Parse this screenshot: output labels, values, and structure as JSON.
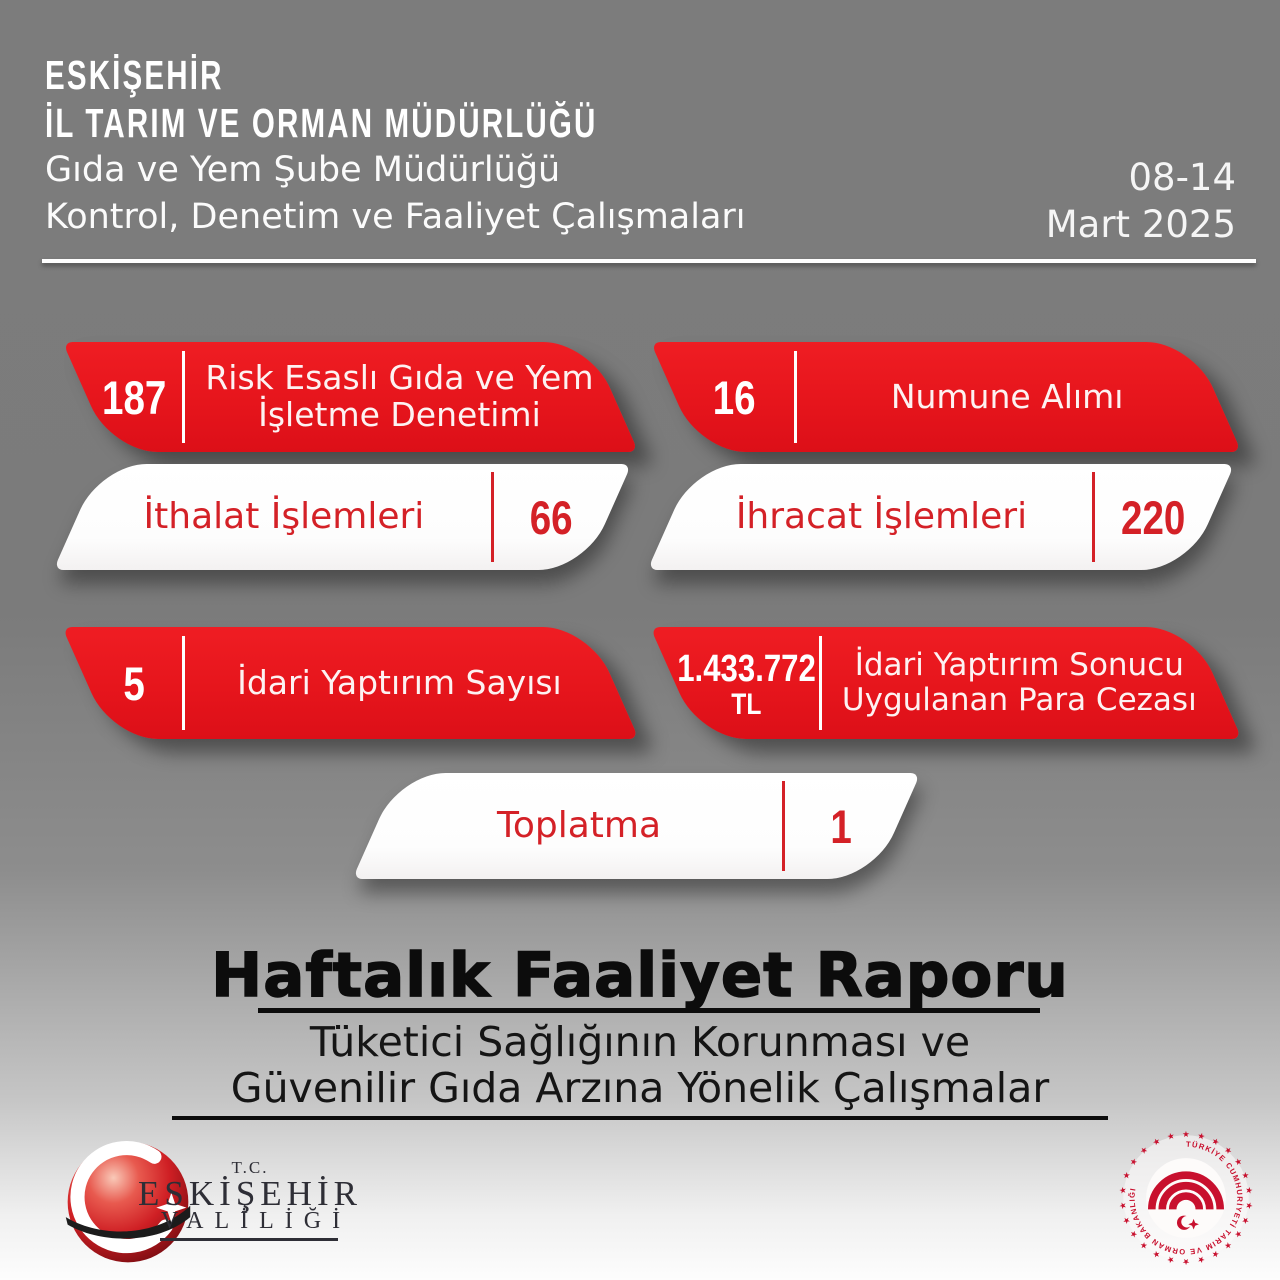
{
  "header": {
    "org_line1": "ESKİŞEHİR",
    "org_line2": "İL TARIM VE ORMAN MÜDÜRLÜĞÜ",
    "dept_line1": "Gıda ve Yem Şube Müdürlüğü",
    "dept_line2": "Kontrol, Denetim ve Faaliyet Çalışmaları",
    "date_line1": "08-14",
    "date_line2": "Mart 2025"
  },
  "stats": [
    {
      "value": "187",
      "label_line1": "Risk Esaslı Gıda ve Yem",
      "label_line2": "İşletme Denetimi"
    },
    {
      "value": "16",
      "label_line1": "Numune Alımı",
      "label_line2": ""
    },
    {
      "label": "İthalat İşlemleri",
      "value": "66"
    },
    {
      "label": "İhracat İşlemleri",
      "value": "220"
    },
    {
      "value": "5",
      "label_line1": "İdari Yaptırım Sayısı",
      "label_line2": ""
    },
    {
      "value": "1.433.772",
      "value_suffix": "TL",
      "label_line1": "İdari Yaptırım Sonucu",
      "label_line2": "Uygulanan Para Cezası"
    },
    {
      "label": "Toplatma",
      "value": "1"
    }
  ],
  "footer": {
    "title": "Haftalık Faaliyet Raporu",
    "subtitle_line1": "Tüketici Sağlığının Korunması ve",
    "subtitle_line2": "Güvenilir Gıda Arzına Yönelik Çalışmalar"
  },
  "logos": {
    "valilik": {
      "tc": "T.C.",
      "name": "ESKİŞEHİR",
      "sub": "VALİLİĞİ"
    },
    "ministry": {
      "ring_text": "TÜRKİYE CUMHURİYETİ TARIM VE ORMAN BAKANLIĞI"
    }
  },
  "colors": {
    "banner_red": "#e6151c",
    "red_text_on_white": "#d42127",
    "background_top": "#7b7b7b",
    "background_bottom": "#fdfdfd"
  }
}
